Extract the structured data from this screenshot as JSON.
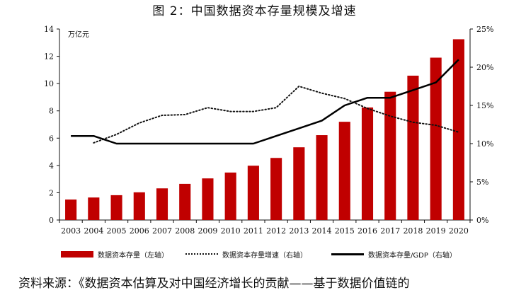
{
  "title": "图 2：中国数据资本存量规模及增速",
  "source": "资料来源：《数据资本估算及对中国经济增长的贡献——基于数据价值链的",
  "chart_data": {
    "type": "bar",
    "categories": [
      "2003",
      "2004",
      "2005",
      "2006",
      "2007",
      "2008",
      "2009",
      "2010",
      "2011",
      "2012",
      "2013",
      "2014",
      "2015",
      "2016",
      "2017",
      "2018",
      "2019",
      "2020"
    ],
    "left_axis": {
      "unit": "万亿元",
      "ylim": [
        0,
        14
      ],
      "ticks": [
        0,
        2,
        4,
        6,
        8,
        10,
        12,
        14
      ],
      "tick_labels": [
        "0",
        "2",
        "4",
        "6",
        "8",
        "10",
        "12",
        "14"
      ]
    },
    "right_axis": {
      "ylim": [
        0,
        25
      ],
      "ticks": [
        0,
        5,
        10,
        15,
        20,
        25
      ],
      "tick_labels": [
        "0%",
        "5%",
        "10%",
        "15%",
        "20%",
        "25%"
      ]
    },
    "series": [
      {
        "name": "数据资本存量（左轴）",
        "kind": "bar",
        "axis": "left",
        "color": "#c00000",
        "values": [
          1.5,
          1.65,
          1.82,
          2.03,
          2.32,
          2.65,
          3.05,
          3.48,
          3.98,
          4.55,
          5.33,
          6.22,
          7.2,
          8.25,
          9.4,
          10.58,
          11.9,
          13.25
        ]
      },
      {
        "name": "数据资本存量增速（右轴）",
        "kind": "line",
        "style": "dotted",
        "axis": "right",
        "color": "#111111",
        "values": [
          null,
          10.1,
          11.2,
          12.7,
          13.7,
          13.8,
          14.7,
          14.2,
          14.2,
          14.7,
          17.5,
          16.6,
          15.9,
          14.6,
          13.6,
          12.8,
          12.4,
          11.5
        ]
      },
      {
        "name": "数据资本存量/GDP（右轴）",
        "kind": "line",
        "style": "solid",
        "axis": "right",
        "color": "#000000",
        "values": [
          11.0,
          11.0,
          10.0,
          10.0,
          10.0,
          10.0,
          10.0,
          10.0,
          10.0,
          11.0,
          12.0,
          13.0,
          15.0,
          16.0,
          16.0,
          17.0,
          18.0,
          21.0
        ]
      }
    ],
    "legend_position": "bottom",
    "grid": false
  }
}
